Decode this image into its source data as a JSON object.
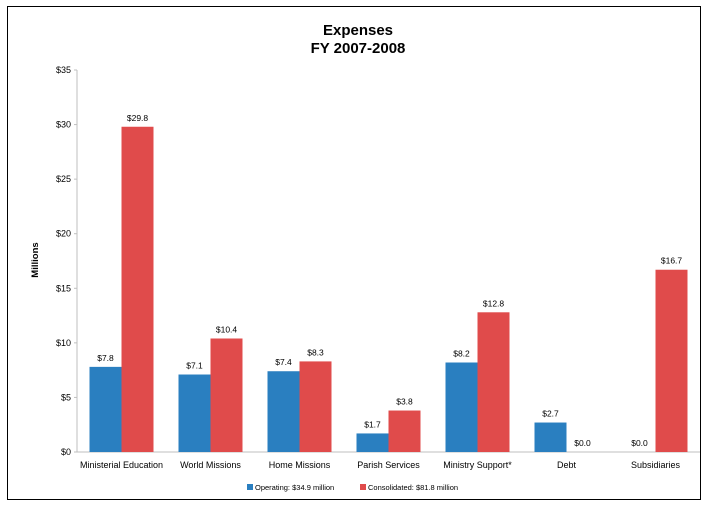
{
  "chart_data": {
    "type": "bar",
    "title": [
      "Expenses",
      "FY 2007-2008"
    ],
    "ylabel": "Millions",
    "xlabel": "",
    "ylim": [
      0,
      35
    ],
    "ytick_step": 5,
    "ytick_labels": [
      "$0",
      "$5",
      "$10",
      "$15",
      "$20",
      "$25",
      "$30",
      "$35"
    ],
    "categories": [
      "Ministerial Education",
      "World Missions",
      "Home Missions",
      "Parish Services",
      "Ministry Support*",
      "Debt",
      "Subsidiaries"
    ],
    "series": [
      {
        "name": "Operating:  $34.9 million",
        "color": "#2a7fc0",
        "values": [
          7.8,
          7.1,
          7.4,
          1.7,
          8.2,
          2.7,
          0.0
        ],
        "labels": [
          "$7.8",
          "$7.1",
          "$7.4",
          "$1.7",
          "$8.2",
          "$2.7",
          "$0.0"
        ]
      },
      {
        "name": "Consolidated:  $81.8 million",
        "color": "#e04b4b",
        "values": [
          29.8,
          10.4,
          8.3,
          3.8,
          12.8,
          0.0,
          16.7
        ],
        "labels": [
          "$29.8",
          "$10.4",
          "$8.3",
          "$3.8",
          "$12.8",
          "$0.0",
          "$16.7"
        ]
      }
    ],
    "grid": false,
    "legend_position": "bottom"
  }
}
